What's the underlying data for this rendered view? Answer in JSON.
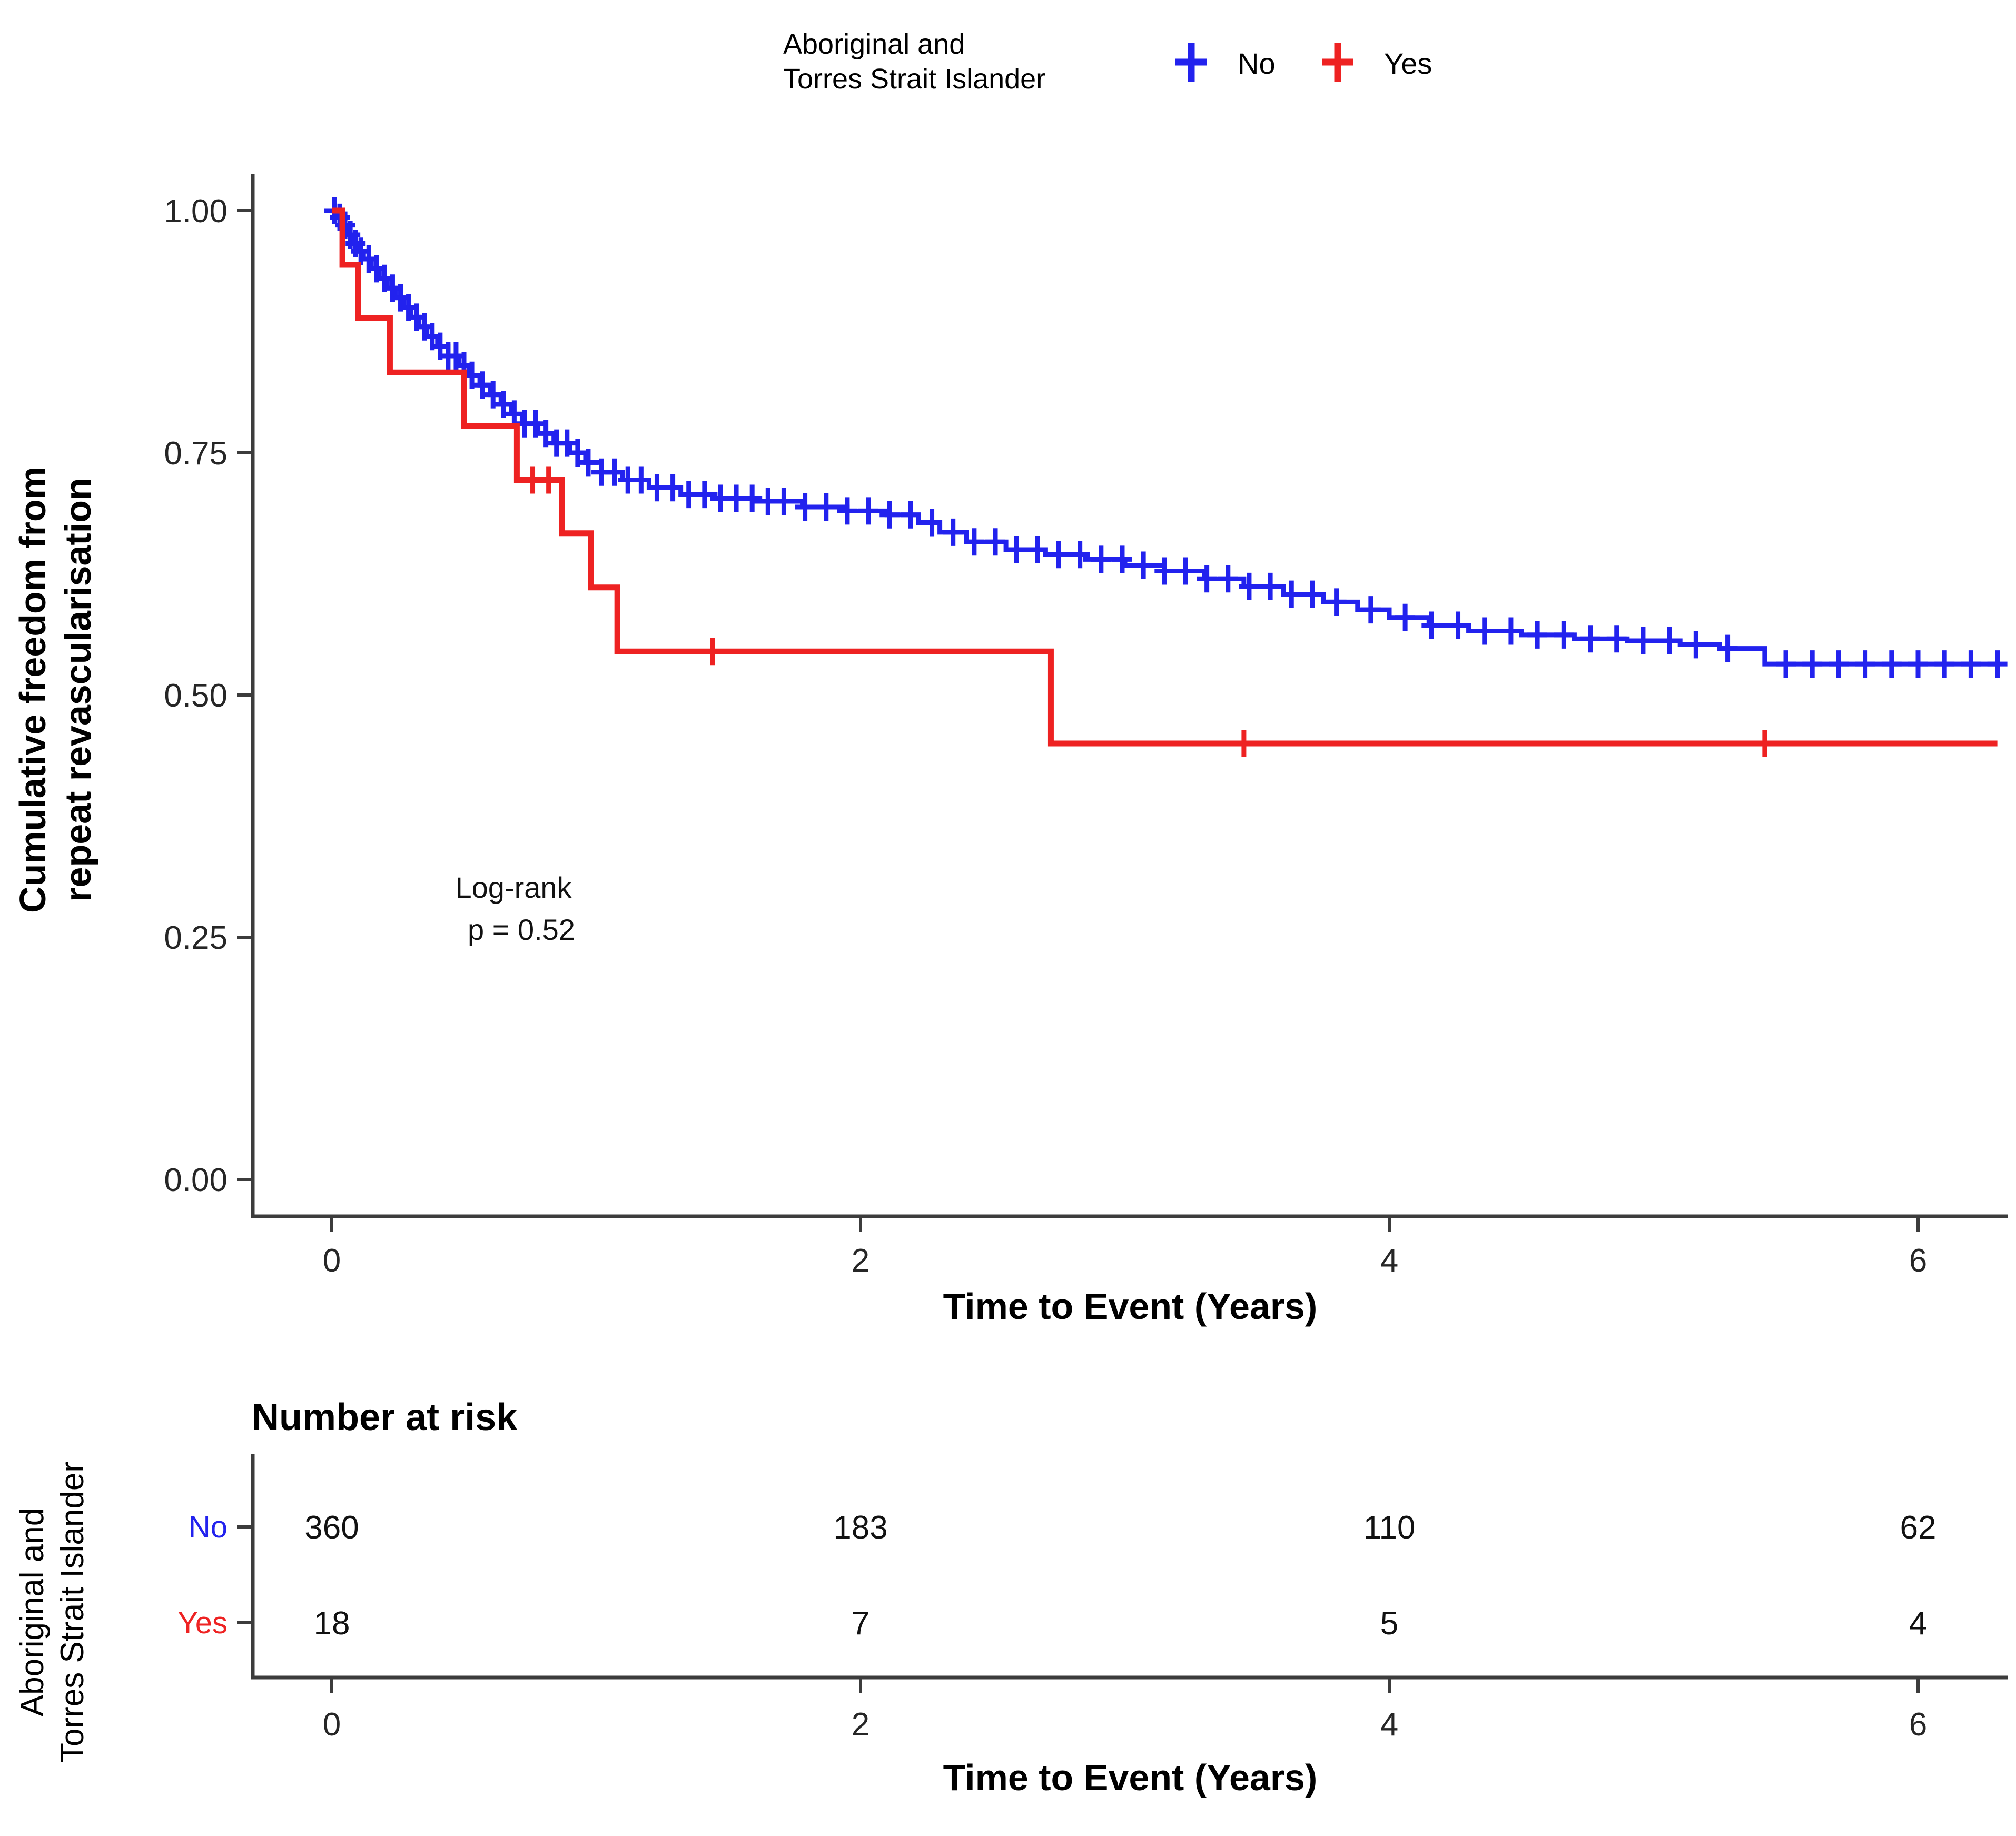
{
  "chart_data": {
    "type": "line",
    "subtype": "kaplan-meier-step",
    "title": "",
    "xlabel": "Time to Event (Years)",
    "ylabel_lines": [
      "Cumulative freedom from",
      "repeat revascularisation"
    ],
    "xlim": [
      0,
      6.3
    ],
    "ylim": [
      0.0,
      1.0
    ],
    "grid": "off",
    "legend_position": "top-center",
    "x_ticks": [
      0,
      2,
      4,
      6
    ],
    "x_tick_labels": [
      "0",
      "2",
      "4",
      "6"
    ],
    "y_ticks": [
      1.0,
      0.75,
      0.5,
      0.25,
      0.0
    ],
    "y_tick_labels": [
      "1.00",
      "0.75",
      "0.50",
      "0.25",
      "0.00"
    ],
    "legend": {
      "title_lines": [
        "Aboriginal and",
        "Torres Strait Islander"
      ],
      "entries": [
        {
          "label": "No",
          "color": "#2222ee",
          "marker": "plus"
        },
        {
          "label": "Yes",
          "color": "#ee2222",
          "marker": "plus"
        }
      ]
    },
    "annotation_lines": [
      "Log-rank",
      "p = 0.52"
    ],
    "series": [
      {
        "name": "No",
        "color": "#2222ee",
        "steps": [
          [
            0,
            1.0
          ],
          [
            0.02,
            0.993
          ],
          [
            0.04,
            0.985
          ],
          [
            0.06,
            0.975
          ],
          [
            0.08,
            0.966
          ],
          [
            0.1,
            0.958
          ],
          [
            0.12,
            0.95
          ],
          [
            0.15,
            0.94
          ],
          [
            0.18,
            0.93
          ],
          [
            0.21,
            0.92
          ],
          [
            0.24,
            0.91
          ],
          [
            0.27,
            0.9
          ],
          [
            0.3,
            0.89
          ],
          [
            0.33,
            0.88
          ],
          [
            0.36,
            0.87
          ],
          [
            0.4,
            0.86
          ],
          [
            0.44,
            0.85
          ],
          [
            0.48,
            0.84
          ],
          [
            0.52,
            0.83
          ],
          [
            0.56,
            0.82
          ],
          [
            0.6,
            0.81
          ],
          [
            0.64,
            0.8
          ],
          [
            0.68,
            0.79
          ],
          [
            0.72,
            0.78
          ],
          [
            0.78,
            0.77
          ],
          [
            0.84,
            0.76
          ],
          [
            0.9,
            0.75
          ],
          [
            0.96,
            0.74
          ],
          [
            1.02,
            0.73
          ],
          [
            1.1,
            0.722
          ],
          [
            1.2,
            0.714
          ],
          [
            1.32,
            0.707
          ],
          [
            1.45,
            0.703
          ],
          [
            1.6,
            0.7
          ],
          [
            1.78,
            0.694
          ],
          [
            1.95,
            0.69
          ],
          [
            2.1,
            0.686
          ],
          [
            2.22,
            0.678
          ],
          [
            2.3,
            0.668
          ],
          [
            2.4,
            0.658
          ],
          [
            2.55,
            0.65
          ],
          [
            2.7,
            0.645
          ],
          [
            2.85,
            0.64
          ],
          [
            3.0,
            0.634
          ],
          [
            3.15,
            0.628
          ],
          [
            3.3,
            0.62
          ],
          [
            3.45,
            0.612
          ],
          [
            3.6,
            0.604
          ],
          [
            3.75,
            0.596
          ],
          [
            3.88,
            0.588
          ],
          [
            4.0,
            0.58
          ],
          [
            4.15,
            0.572
          ],
          [
            4.3,
            0.566
          ],
          [
            4.5,
            0.562
          ],
          [
            4.7,
            0.558
          ],
          [
            4.9,
            0.556
          ],
          [
            5.1,
            0.552
          ],
          [
            5.25,
            0.548
          ],
          [
            5.42,
            0.532
          ],
          [
            6.3,
            0.532
          ]
        ],
        "censor_times": [
          0.01,
          0.03,
          0.05,
          0.07,
          0.09,
          0.11,
          0.14,
          0.17,
          0.2,
          0.23,
          0.26,
          0.29,
          0.32,
          0.35,
          0.38,
          0.41,
          0.44,
          0.47,
          0.5,
          0.53,
          0.57,
          0.61,
          0.65,
          0.69,
          0.73,
          0.77,
          0.81,
          0.85,
          0.89,
          0.93,
          0.97,
          1.02,
          1.07,
          1.12,
          1.17,
          1.23,
          1.29,
          1.35,
          1.41,
          1.47,
          1.53,
          1.59,
          1.65,
          1.71,
          1.79,
          1.87,
          1.95,
          2.03,
          2.11,
          2.19,
          2.27,
          2.35,
          2.43,
          2.51,
          2.59,
          2.67,
          2.75,
          2.83,
          2.91,
          2.99,
          3.07,
          3.15,
          3.23,
          3.31,
          3.39,
          3.47,
          3.55,
          3.63,
          3.71,
          3.8,
          3.93,
          4.06,
          4.16,
          4.26,
          4.36,
          4.46,
          4.56,
          4.66,
          4.76,
          4.86,
          4.96,
          5.06,
          5.16,
          5.28,
          5.5,
          5.6,
          5.7,
          5.8,
          5.9,
          6.0,
          6.1,
          6.2,
          6.3
        ]
      },
      {
        "name": "Yes",
        "color": "#ee2222",
        "steps": [
          [
            0,
            1.0
          ],
          [
            0.04,
            0.944
          ],
          [
            0.1,
            0.889
          ],
          [
            0.22,
            0.833
          ],
          [
            0.5,
            0.778
          ],
          [
            0.7,
            0.722
          ],
          [
            0.87,
            0.667
          ],
          [
            0.98,
            0.611
          ],
          [
            1.08,
            0.545
          ],
          [
            2.72,
            0.45
          ],
          [
            6.3,
            0.45
          ]
        ],
        "censor_times": [
          0.76,
          0.82,
          1.44,
          3.45,
          5.42
        ]
      }
    ],
    "risk_table": {
      "title": "Number at risk",
      "group_label_lines": [
        "Aboriginal and",
        "Torres Strait Islander"
      ],
      "times": [
        0,
        2,
        4,
        6
      ],
      "time_labels": [
        "0",
        "2",
        "4",
        "6"
      ],
      "xlabel": "Time to Event (Years)",
      "rows": [
        {
          "label": "No",
          "color": "#2222ee",
          "values": [
            "360",
            "183",
            "110",
            "62"
          ]
        },
        {
          "label": "Yes",
          "color": "#ee2222",
          "values": [
            "18",
            "7",
            "5",
            "4"
          ]
        }
      ]
    }
  }
}
